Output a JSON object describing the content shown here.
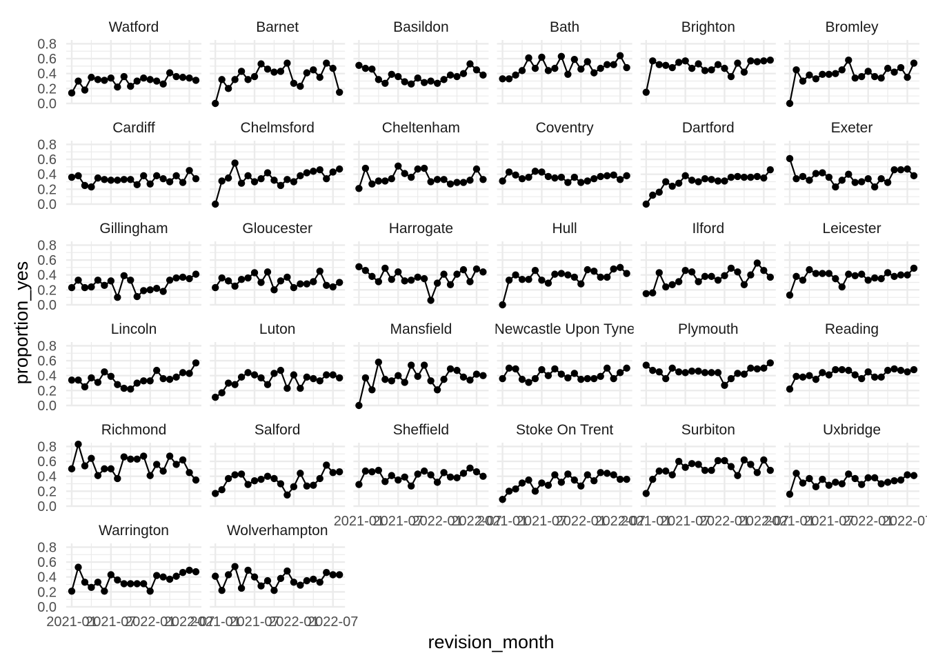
{
  "chart_data": {
    "type": "line",
    "facet_layout": {
      "columns": 6,
      "rows": 6
    },
    "xlabel": "revision_month",
    "ylabel": "proportion_yes",
    "x": [
      "2021-01",
      "2021-02",
      "2021-03",
      "2021-04",
      "2021-05",
      "2021-06",
      "2021-07",
      "2021-08",
      "2021-09",
      "2021-10",
      "2021-11",
      "2021-12",
      "2022-01",
      "2022-02",
      "2022-03",
      "2022-04",
      "2022-05",
      "2022-06",
      "2022-07",
      "2022-08"
    ],
    "x_tick_labels": [
      "2021-01",
      "2021-07",
      "2022-01",
      "2022-07"
    ],
    "y_ticks": [
      "0.0",
      "0.2",
      "0.4",
      "0.6",
      "0.8"
    ],
    "ylim": [
      0,
      0.85
    ],
    "grid": true,
    "point_color": "#000000",
    "line_color": "#000000",
    "series": [
      {
        "name": "Watford",
        "values": [
          0.14,
          0.3,
          0.18,
          0.35,
          0.32,
          0.31,
          0.34,
          0.22,
          0.36,
          0.23,
          0.3,
          0.34,
          0.32,
          0.3,
          0.26,
          0.41,
          0.36,
          0.35,
          0.34,
          0.31
        ]
      },
      {
        "name": "Barnet",
        "values": [
          0.0,
          0.32,
          0.2,
          0.32,
          0.43,
          0.32,
          0.36,
          0.53,
          0.46,
          0.42,
          0.43,
          0.54,
          0.27,
          0.23,
          0.41,
          0.45,
          0.35,
          0.54,
          0.47,
          0.15
        ]
      },
      {
        "name": "Basildon",
        "values": [
          0.51,
          0.47,
          0.46,
          0.32,
          0.27,
          0.39,
          0.36,
          0.29,
          0.26,
          0.34,
          0.28,
          0.3,
          0.27,
          0.32,
          0.38,
          0.36,
          0.4,
          0.53,
          0.45,
          0.38
        ]
      },
      {
        "name": "Bath",
        "values": [
          0.33,
          0.33,
          0.38,
          0.44,
          0.61,
          0.47,
          0.62,
          0.44,
          0.47,
          0.63,
          0.39,
          0.59,
          0.46,
          0.56,
          0.41,
          0.47,
          0.52,
          0.52,
          0.64,
          0.48
        ]
      },
      {
        "name": "Brighton",
        "values": [
          0.15,
          0.57,
          0.52,
          0.51,
          0.48,
          0.55,
          0.57,
          0.47,
          0.53,
          0.44,
          0.45,
          0.52,
          0.47,
          0.36,
          0.54,
          0.42,
          0.57,
          0.56,
          0.57,
          0.58
        ]
      },
      {
        "name": "Bromley",
        "values": [
          0.0,
          0.45,
          0.3,
          0.38,
          0.33,
          0.39,
          0.39,
          0.4,
          0.45,
          0.58,
          0.34,
          0.36,
          0.43,
          0.36,
          0.34,
          0.47,
          0.42,
          0.48,
          0.35,
          0.54
        ]
      },
      {
        "name": "Cardiff",
        "values": [
          0.36,
          0.38,
          0.25,
          0.23,
          0.35,
          0.33,
          0.32,
          0.32,
          0.33,
          0.33,
          0.26,
          0.38,
          0.27,
          0.38,
          0.34,
          0.3,
          0.38,
          0.29,
          0.45,
          0.34
        ]
      },
      {
        "name": "Chelmsford",
        "values": [
          0.0,
          0.31,
          0.35,
          0.55,
          0.28,
          0.38,
          0.3,
          0.34,
          0.42,
          0.32,
          0.25,
          0.33,
          0.3,
          0.38,
          0.42,
          0.44,
          0.46,
          0.34,
          0.43,
          0.47
        ]
      },
      {
        "name": "Cheltenham",
        "values": [
          0.21,
          0.48,
          0.27,
          0.31,
          0.31,
          0.34,
          0.51,
          0.41,
          0.36,
          0.47,
          0.48,
          0.3,
          0.33,
          0.33,
          0.27,
          0.29,
          0.29,
          0.32,
          0.47,
          0.33
        ]
      },
      {
        "name": "Coventry",
        "values": [
          0.31,
          0.43,
          0.39,
          0.34,
          0.36,
          0.44,
          0.43,
          0.37,
          0.35,
          0.36,
          0.29,
          0.36,
          0.29,
          0.31,
          0.34,
          0.37,
          0.38,
          0.39,
          0.33,
          0.38
        ]
      },
      {
        "name": "Dartford",
        "values": [
          0.0,
          0.12,
          0.16,
          0.3,
          0.24,
          0.28,
          0.38,
          0.32,
          0.3,
          0.34,
          0.33,
          0.31,
          0.31,
          0.36,
          0.37,
          0.36,
          0.36,
          0.37,
          0.35,
          0.46
        ]
      },
      {
        "name": "Exeter",
        "values": [
          0.61,
          0.34,
          0.37,
          0.32,
          0.41,
          0.42,
          0.36,
          0.23,
          0.32,
          0.4,
          0.29,
          0.3,
          0.34,
          0.23,
          0.34,
          0.29,
          0.46,
          0.46,
          0.47,
          0.38
        ]
      },
      {
        "name": "Gillingham",
        "values": [
          0.23,
          0.33,
          0.23,
          0.24,
          0.33,
          0.26,
          0.32,
          0.1,
          0.39,
          0.33,
          0.11,
          0.19,
          0.2,
          0.22,
          0.18,
          0.33,
          0.36,
          0.37,
          0.35,
          0.41
        ]
      },
      {
        "name": "Gloucester",
        "values": [
          0.23,
          0.36,
          0.32,
          0.25,
          0.34,
          0.36,
          0.43,
          0.3,
          0.44,
          0.2,
          0.32,
          0.37,
          0.23,
          0.28,
          0.28,
          0.31,
          0.45,
          0.26,
          0.24,
          0.3
        ]
      },
      {
        "name": "Harrogate",
        "values": [
          0.51,
          0.46,
          0.38,
          0.31,
          0.49,
          0.34,
          0.44,
          0.32,
          0.33,
          0.37,
          0.35,
          0.06,
          0.29,
          0.41,
          0.27,
          0.41,
          0.47,
          0.31,
          0.48,
          0.44
        ]
      },
      {
        "name": "Hull",
        "values": [
          0.0,
          0.33,
          0.4,
          0.34,
          0.34,
          0.46,
          0.33,
          0.29,
          0.41,
          0.42,
          0.4,
          0.37,
          0.28,
          0.47,
          0.45,
          0.37,
          0.37,
          0.48,
          0.5,
          0.42
        ]
      },
      {
        "name": "Ilford",
        "values": [
          0.15,
          0.16,
          0.43,
          0.24,
          0.27,
          0.31,
          0.46,
          0.44,
          0.31,
          0.38,
          0.38,
          0.33,
          0.39,
          0.49,
          0.44,
          0.27,
          0.4,
          0.56,
          0.46,
          0.37
        ]
      },
      {
        "name": "Leicester",
        "values": [
          0.13,
          0.38,
          0.33,
          0.47,
          0.42,
          0.42,
          0.42,
          0.35,
          0.24,
          0.41,
          0.39,
          0.41,
          0.33,
          0.36,
          0.35,
          0.43,
          0.38,
          0.4,
          0.4,
          0.49
        ]
      },
      {
        "name": "Lincoln",
        "values": [
          0.34,
          0.34,
          0.25,
          0.37,
          0.31,
          0.45,
          0.39,
          0.28,
          0.23,
          0.22,
          0.3,
          0.33,
          0.33,
          0.47,
          0.36,
          0.35,
          0.38,
          0.44,
          0.43,
          0.57
        ]
      },
      {
        "name": "Luton",
        "values": [
          0.11,
          0.17,
          0.3,
          0.28,
          0.38,
          0.44,
          0.41,
          0.37,
          0.28,
          0.43,
          0.47,
          0.23,
          0.41,
          0.23,
          0.38,
          0.36,
          0.33,
          0.41,
          0.41,
          0.37
        ]
      },
      {
        "name": "Mansfield",
        "values": [
          0.0,
          0.37,
          0.21,
          0.58,
          0.35,
          0.33,
          0.4,
          0.31,
          0.54,
          0.39,
          0.54,
          0.33,
          0.21,
          0.35,
          0.49,
          0.47,
          0.38,
          0.34,
          0.42,
          0.4
        ]
      },
      {
        "name": "Newcastle Upon Tyne",
        "values": [
          0.36,
          0.5,
          0.49,
          0.35,
          0.31,
          0.36,
          0.48,
          0.4,
          0.49,
          0.42,
          0.37,
          0.43,
          0.35,
          0.36,
          0.36,
          0.39,
          0.5,
          0.36,
          0.44,
          0.5
        ]
      },
      {
        "name": "Plymouth",
        "values": [
          0.54,
          0.47,
          0.45,
          0.36,
          0.5,
          0.45,
          0.44,
          0.46,
          0.46,
          0.44,
          0.44,
          0.44,
          0.27,
          0.36,
          0.43,
          0.42,
          0.5,
          0.49,
          0.5,
          0.57
        ]
      },
      {
        "name": "Reading",
        "values": [
          0.22,
          0.39,
          0.38,
          0.4,
          0.35,
          0.44,
          0.41,
          0.48,
          0.48,
          0.47,
          0.41,
          0.36,
          0.45,
          0.38,
          0.38,
          0.47,
          0.49,
          0.47,
          0.45,
          0.48
        ]
      },
      {
        "name": "Richmond",
        "values": [
          0.5,
          0.83,
          0.54,
          0.64,
          0.41,
          0.5,
          0.5,
          0.37,
          0.66,
          0.63,
          0.63,
          0.67,
          0.41,
          0.56,
          0.47,
          0.67,
          0.56,
          0.62,
          0.45,
          0.35
        ]
      },
      {
        "name": "Salford",
        "values": [
          0.17,
          0.22,
          0.37,
          0.42,
          0.43,
          0.29,
          0.34,
          0.36,
          0.4,
          0.37,
          0.3,
          0.15,
          0.26,
          0.44,
          0.27,
          0.28,
          0.37,
          0.55,
          0.45,
          0.46
        ]
      },
      {
        "name": "Sheffield",
        "values": [
          0.29,
          0.47,
          0.46,
          0.48,
          0.33,
          0.41,
          0.35,
          0.39,
          0.27,
          0.43,
          0.47,
          0.42,
          0.32,
          0.45,
          0.39,
          0.38,
          0.44,
          0.51,
          0.46,
          0.4
        ]
      },
      {
        "name": "Stoke On Trent",
        "values": [
          0.09,
          0.2,
          0.23,
          0.31,
          0.35,
          0.2,
          0.31,
          0.28,
          0.42,
          0.32,
          0.43,
          0.35,
          0.27,
          0.42,
          0.34,
          0.45,
          0.44,
          0.42,
          0.36,
          0.36
        ]
      },
      {
        "name": "Surbiton",
        "values": [
          0.17,
          0.36,
          0.47,
          0.47,
          0.42,
          0.6,
          0.52,
          0.57,
          0.56,
          0.48,
          0.48,
          0.61,
          0.61,
          0.53,
          0.41,
          0.62,
          0.56,
          0.45,
          0.62,
          0.48
        ]
      },
      {
        "name": "Uxbridge",
        "values": [
          0.16,
          0.44,
          0.31,
          0.37,
          0.26,
          0.36,
          0.28,
          0.32,
          0.3,
          0.43,
          0.37,
          0.29,
          0.38,
          0.38,
          0.3,
          0.32,
          0.34,
          0.35,
          0.42,
          0.41
        ]
      },
      {
        "name": "Warrington",
        "values": [
          0.21,
          0.53,
          0.33,
          0.26,
          0.33,
          0.21,
          0.43,
          0.36,
          0.31,
          0.31,
          0.31,
          0.31,
          0.21,
          0.42,
          0.4,
          0.37,
          0.41,
          0.46,
          0.49,
          0.47
        ]
      },
      {
        "name": "Wolverhampton",
        "values": [
          0.41,
          0.22,
          0.43,
          0.54,
          0.25,
          0.49,
          0.4,
          0.28,
          0.35,
          0.22,
          0.38,
          0.48,
          0.33,
          0.29,
          0.35,
          0.37,
          0.33,
          0.46,
          0.43,
          0.43
        ]
      }
    ]
  }
}
